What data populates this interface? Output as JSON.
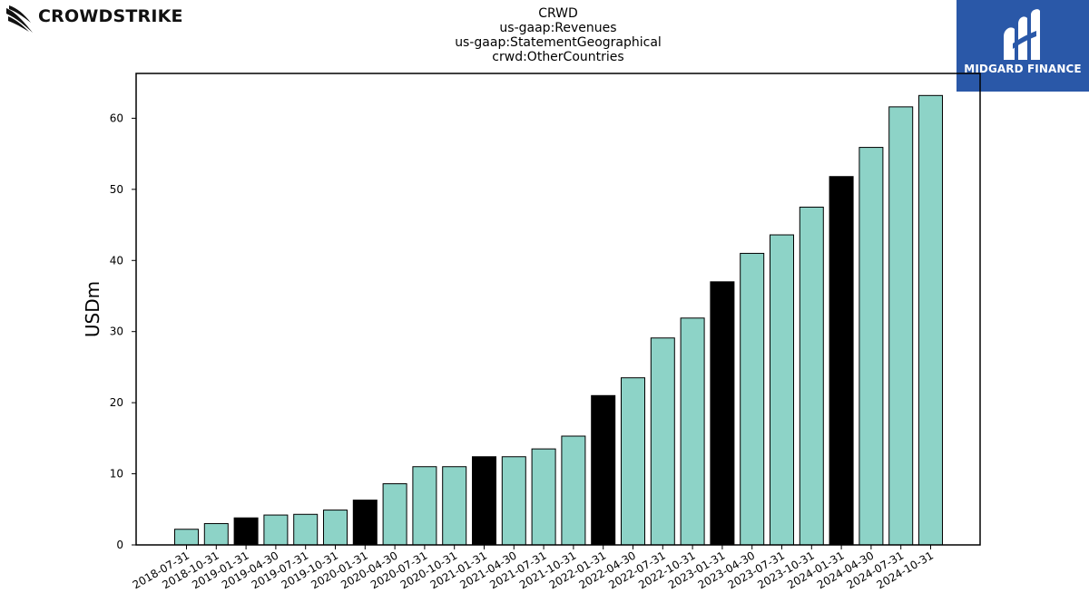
{
  "brand_left": {
    "name": "CROWDSTRIKE",
    "icon": "falcon-swoosh-icon"
  },
  "brand_right": {
    "name": "MIDGARD FINANCE",
    "icon": "midgard-logo-icon",
    "background": "#2a58a8"
  },
  "titles": [
    "CRWD",
    "us-gaap:Revenues",
    "us-gaap:StatementGeographical",
    "crwd:OtherCountries"
  ],
  "chart_data": {
    "type": "bar",
    "ylabel": "USDm",
    "xlabel": "",
    "ylim": [
      0,
      66.3
    ],
    "yticks": [
      0,
      10,
      20,
      30,
      40,
      50,
      60
    ],
    "grid": false,
    "categories": [
      "2018-07-31",
      "2018-10-31",
      "2019-01-31",
      "2019-04-30",
      "2019-07-31",
      "2019-10-31",
      "2020-01-31",
      "2020-04-30",
      "2020-07-31",
      "2020-10-31",
      "2021-01-31",
      "2021-04-30",
      "2021-07-31",
      "2021-10-31",
      "2022-01-31",
      "2022-04-30",
      "2022-07-31",
      "2022-10-31",
      "2023-01-31",
      "2023-04-30",
      "2023-07-31",
      "2023-10-31",
      "2024-01-31",
      "2024-04-30",
      "2024-07-31",
      "2024-10-31"
    ],
    "values": [
      2.2,
      3.0,
      3.8,
      4.2,
      4.3,
      4.9,
      6.3,
      8.6,
      11.0,
      11.0,
      12.4,
      12.4,
      13.5,
      15.3,
      21.0,
      23.5,
      29.1,
      31.9,
      37.0,
      41.0,
      43.6,
      47.5,
      51.8,
      55.9,
      61.6,
      63.2
    ],
    "fiscal_q4_highlight": [
      false,
      false,
      true,
      false,
      false,
      false,
      true,
      false,
      false,
      false,
      true,
      false,
      false,
      false,
      true,
      false,
      false,
      false,
      true,
      false,
      false,
      false,
      true,
      false,
      false,
      false
    ],
    "colors": {
      "bar": "#8dd3c7",
      "highlight": "#000000",
      "edge": "#000000"
    }
  }
}
